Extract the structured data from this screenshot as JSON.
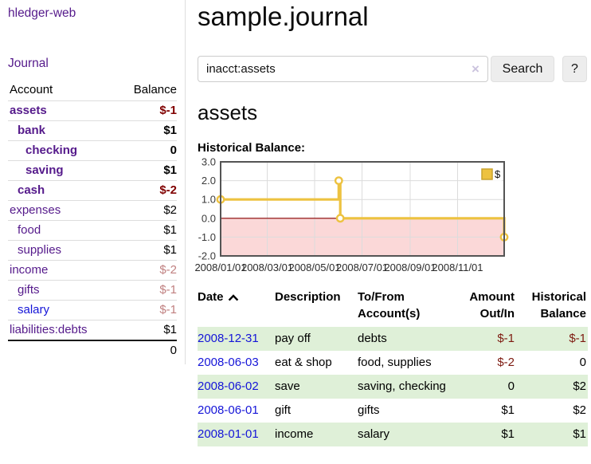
{
  "colors": {
    "link_purple": "#551a8b",
    "link_blue": "#1515d8",
    "negative": "#800000",
    "dim_negative": "#c08080",
    "stripe_green": "#dff0d8",
    "series_gold": "#edc240",
    "negative_region": "#fbd8d8",
    "zero_line": "#8b0000"
  },
  "sidebar": {
    "brand": "hledger-web",
    "nav": [
      {
        "label": "Journal"
      }
    ],
    "accounts_table": {
      "headers": [
        "Account",
        "Balance"
      ],
      "rows": [
        {
          "name": "assets",
          "level": 1,
          "bold": true,
          "link": "visited",
          "balance": "$-1",
          "balance_style": "neg"
        },
        {
          "name": "bank",
          "level": 2,
          "bold": true,
          "link": "visited",
          "balance": "$1",
          "balance_style": "pos"
        },
        {
          "name": "checking",
          "level": 3,
          "bold": true,
          "link": "visited",
          "balance": "0",
          "balance_style": "pos"
        },
        {
          "name": "saving",
          "level": 3,
          "bold": true,
          "link": "visited",
          "balance": "$1",
          "balance_style": "pos"
        },
        {
          "name": "cash",
          "level": 2,
          "bold": true,
          "link": "visited",
          "balance": "$-2",
          "balance_style": "neg"
        },
        {
          "name": "expenses",
          "level": 1,
          "bold": false,
          "link": "visited",
          "balance": "$2",
          "balance_style": "pos"
        },
        {
          "name": "food",
          "level": 2,
          "bold": false,
          "link": "visited",
          "balance": "$1",
          "balance_style": "pos"
        },
        {
          "name": "supplies",
          "level": 2,
          "bold": false,
          "link": "visited",
          "balance": "$1",
          "balance_style": "pos"
        },
        {
          "name": "income",
          "level": 1,
          "bold": false,
          "link": "visited",
          "balance": "$-2",
          "balance_style": "dimneg"
        },
        {
          "name": "gifts",
          "level": 2,
          "bold": false,
          "link": "visited",
          "balance": "$-1",
          "balance_style": "dimneg"
        },
        {
          "name": "salary",
          "level": 2,
          "bold": false,
          "link": "unvisited",
          "balance": "$-1",
          "balance_style": "dimneg"
        },
        {
          "name": "liabilities:debts",
          "level": 1,
          "bold": false,
          "link": "visited",
          "balance": "$1",
          "balance_style": "pos"
        }
      ],
      "total": "0"
    }
  },
  "main": {
    "title": "sample.journal",
    "search": {
      "value": "inacct:assets",
      "clear_icon": "×",
      "search_button": "Search",
      "help_button": "?"
    },
    "account_heading": "assets",
    "chart_label": "Historical Balance:"
  },
  "chart_data": {
    "type": "line",
    "title": "Historical Balance",
    "step": true,
    "series": [
      {
        "name": "$",
        "color": "#edc240",
        "points": [
          [
            "2008/01/01",
            1.0
          ],
          [
            "2008/06/01",
            2.0
          ],
          [
            "2008/06/03",
            0.0
          ],
          [
            "2008/12/31",
            -1.0
          ]
        ]
      }
    ],
    "x_ticks": [
      "2008/01/01",
      "2008/03/01",
      "2008/05/01",
      "2008/07/01",
      "2008/09/01",
      "2008/11/01"
    ],
    "y_ticks": [
      3.0,
      2.0,
      1.0,
      0.0,
      -1.0,
      -2.0
    ],
    "xlim": [
      "2008/01/01",
      "2008/12/31"
    ],
    "ylim": [
      -2.0,
      3.0
    ],
    "grid": true,
    "legend_position": "top-right",
    "legend_label": "$"
  },
  "transactions": {
    "headers": {
      "date": "Date",
      "description": "Description",
      "accounts_line1": "To/From",
      "accounts_line2": "Account(s)",
      "amount_line1": "Amount",
      "amount_line2": "Out/In",
      "balance_line1": "Historical",
      "balance_line2": "Balance"
    },
    "sort": {
      "column": "date",
      "direction": "ascending"
    },
    "rows": [
      {
        "date": "2008-12-31",
        "description": "pay off",
        "accounts": "debts",
        "amount": "$-1",
        "amount_neg": true,
        "balance": "$-1",
        "balance_neg": true
      },
      {
        "date": "2008-06-03",
        "description": "eat & shop",
        "accounts": "food, supplies",
        "amount": "$-2",
        "amount_neg": true,
        "balance": "0",
        "balance_neg": false
      },
      {
        "date": "2008-06-02",
        "description": "save",
        "accounts": "saving, checking",
        "amount": "0",
        "amount_neg": false,
        "balance": "$2",
        "balance_neg": false
      },
      {
        "date": "2008-06-01",
        "description": "gift",
        "accounts": "gifts",
        "amount": "$1",
        "amount_neg": false,
        "balance": "$2",
        "balance_neg": false
      },
      {
        "date": "2008-01-01",
        "description": "income",
        "accounts": "salary",
        "amount": "$1",
        "amount_neg": false,
        "balance": "$1",
        "balance_neg": false
      }
    ]
  }
}
